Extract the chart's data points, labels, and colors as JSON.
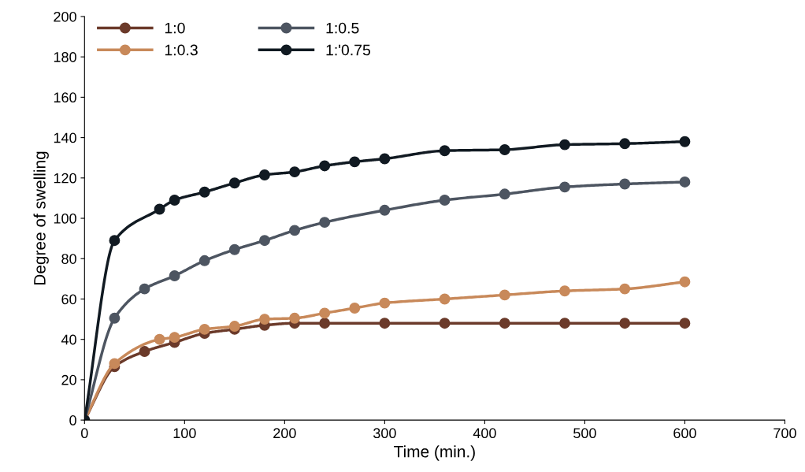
{
  "chart_data": {
    "type": "line",
    "xlabel": "Time (min.)",
    "ylabel": "Degree of swelling",
    "xlim": [
      0,
      700
    ],
    "xticks": [
      0,
      100,
      200,
      300,
      400,
      500,
      600,
      700
    ],
    "ylim": [
      0,
      200
    ],
    "yticks": [
      0,
      20,
      40,
      60,
      80,
      100,
      120,
      140,
      160,
      180,
      200
    ],
    "grid": false,
    "legend": "top left",
    "marker": "circle",
    "line_style": "solid",
    "series": [
      {
        "name": "1:0",
        "color": "#6b3a2a",
        "x": [
          0,
          30,
          60,
          90,
          120,
          150,
          180,
          210,
          240,
          300,
          360,
          420,
          480,
          540,
          600
        ],
        "values": [
          0,
          26.5,
          34,
          38.5,
          43,
          45,
          47,
          48,
          48,
          48,
          48,
          48,
          48,
          48,
          48
        ]
      },
      {
        "name": "1:0.3",
        "color": "#c8895a",
        "x": [
          0,
          30,
          75,
          90,
          120,
          150,
          180,
          210,
          240,
          270,
          300,
          360,
          420,
          480,
          540,
          600
        ],
        "values": [
          0,
          28,
          40,
          41,
          45,
          46.5,
          50,
          50.5,
          53,
          55.5,
          58,
          60,
          62,
          64,
          65,
          68.5
        ]
      },
      {
        "name": "1:0.5",
        "color": "#4d5561",
        "x": [
          0,
          30,
          60,
          90,
          120,
          150,
          180,
          210,
          240,
          300,
          360,
          420,
          480,
          540,
          600
        ],
        "values": [
          0,
          50.5,
          65,
          71.5,
          79,
          84.5,
          89,
          94,
          98,
          104,
          109,
          112,
          115.5,
          117,
          118
        ]
      },
      {
        "name": "1:'0.75",
        "color": "#111a22",
        "x": [
          0,
          30,
          75,
          90,
          120,
          150,
          180,
          210,
          240,
          270,
          300,
          360,
          420,
          480,
          540,
          600
        ],
        "values": [
          0,
          89,
          104.5,
          109,
          113,
          117.5,
          121.5,
          123,
          126,
          128,
          129.5,
          133.5,
          134,
          136.5,
          137,
          138
        ]
      }
    ]
  }
}
